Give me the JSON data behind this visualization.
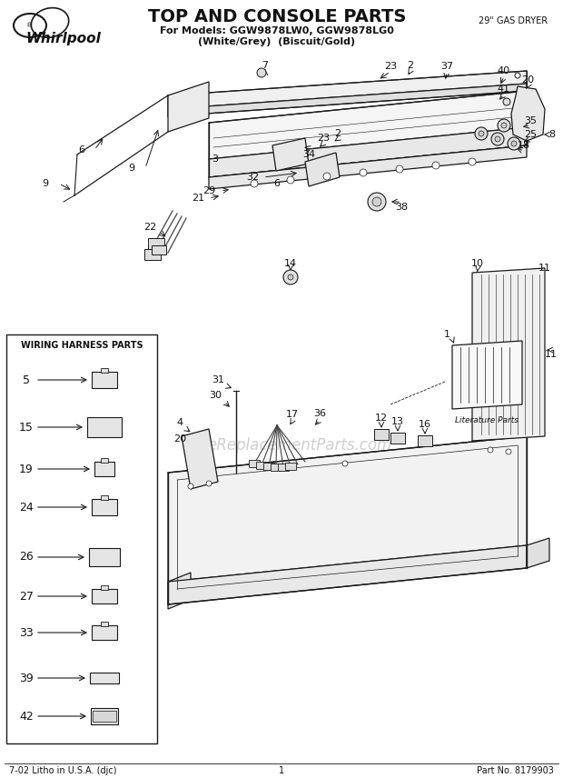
{
  "title": "TOP AND CONSOLE PARTS",
  "subtitle1": "For Models: GGW9878LW0, GGW9878LG0",
  "subtitle2": "(White/Grey)  (Biscuit/Gold)",
  "corner_text": "29\" GAS DRYER",
  "footer_left": "7-02 Litho in U.S.A. (djc)",
  "footer_center": "1",
  "footer_right": "Part No. 8179903",
  "watermark": "eReplacementParts.com",
  "bg_color": "#ffffff",
  "line_color": "#1a1a1a",
  "text_color": "#111111",
  "part_labels": [
    [
      55,
      780,
      "9"
    ],
    [
      162,
      758,
      "9"
    ],
    [
      88,
      738,
      "6"
    ],
    [
      210,
      700,
      "3"
    ],
    [
      197,
      641,
      "22"
    ],
    [
      218,
      613,
      "21"
    ],
    [
      232,
      624,
      "29"
    ],
    [
      270,
      626,
      "32"
    ],
    [
      305,
      636,
      "6"
    ],
    [
      340,
      680,
      "34"
    ],
    [
      356,
      691,
      "23"
    ],
    [
      373,
      686,
      "2"
    ],
    [
      430,
      761,
      "23"
    ],
    [
      448,
      757,
      "2"
    ],
    [
      492,
      757,
      "37"
    ],
    [
      291,
      752,
      "7"
    ],
    [
      556,
      765,
      "20"
    ],
    [
      554,
      724,
      "40"
    ],
    [
      555,
      704,
      "41"
    ],
    [
      596,
      730,
      "8"
    ],
    [
      580,
      648,
      "35"
    ],
    [
      581,
      625,
      "25"
    ],
    [
      574,
      606,
      "18"
    ],
    [
      448,
      597,
      "38"
    ],
    [
      600,
      565,
      "11"
    ],
    [
      329,
      570,
      "14"
    ],
    [
      206,
      558,
      "4"
    ],
    [
      204,
      574,
      "20"
    ],
    [
      519,
      472,
      "10"
    ],
    [
      180,
      445,
      "22"
    ],
    [
      243,
      502,
      "31"
    ],
    [
      236,
      468,
      "30"
    ],
    [
      333,
      436,
      "17"
    ],
    [
      358,
      442,
      "36"
    ],
    [
      425,
      430,
      "12"
    ],
    [
      453,
      417,
      "13"
    ],
    [
      495,
      407,
      "16"
    ],
    [
      516,
      383,
      "1"
    ],
    [
      531,
      366,
      "Literature\nParts"
    ]
  ],
  "wiring_nums": [
    "5",
    "15",
    "19",
    "24",
    "26",
    "27",
    "33",
    "39",
    "42"
  ]
}
